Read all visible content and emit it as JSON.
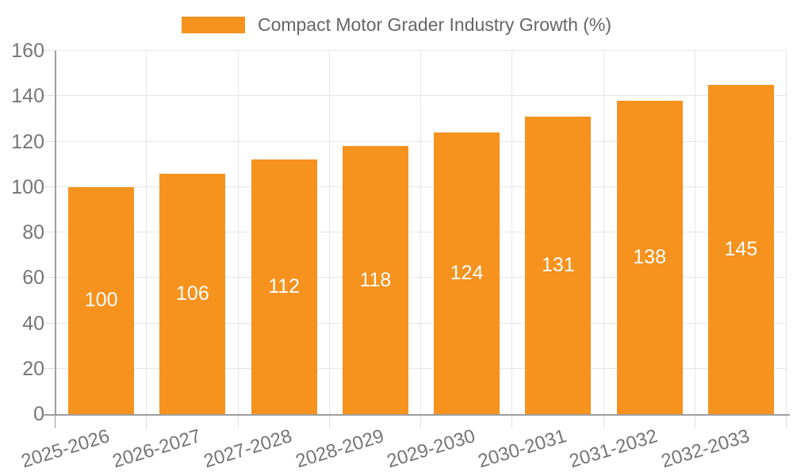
{
  "legend": {
    "label": "Compact Motor Grader Industry Growth (%)"
  },
  "chart_data": {
    "type": "bar",
    "title": "Compact Motor Grader Industry Growth (%)",
    "categories": [
      "2025-2026",
      "2026-2027",
      "2027-2028",
      "2028-2029",
      "2029-2030",
      "2030-2031",
      "2031-2032",
      "2032-2033"
    ],
    "series": [
      {
        "name": "Compact Motor Grader Industry Growth (%)",
        "color": "#F6921E",
        "values": [
          100,
          106,
          112,
          118,
          124,
          131,
          138,
          145
        ]
      }
    ],
    "value_labels": [
      "100",
      "106",
      "112",
      "118",
      "124",
      "131",
      "138",
      "145"
    ],
    "value_label_position": "inside-center",
    "value_label_color": "#FFFFFF",
    "xlabel": "",
    "ylabel": "",
    "ylim": [
      0,
      160
    ],
    "yticks": [
      0,
      20,
      40,
      60,
      80,
      100,
      120,
      140,
      160
    ],
    "grid": true,
    "legend_position": "top-center"
  },
  "colors": {
    "bar": "#F6921E",
    "grid": "#E6E6E6",
    "tick": "#E0E0E0",
    "axis": "#9E9E9E",
    "axis_text": "#757575",
    "legend_text": "#666666",
    "background": "#FFFFFF"
  }
}
